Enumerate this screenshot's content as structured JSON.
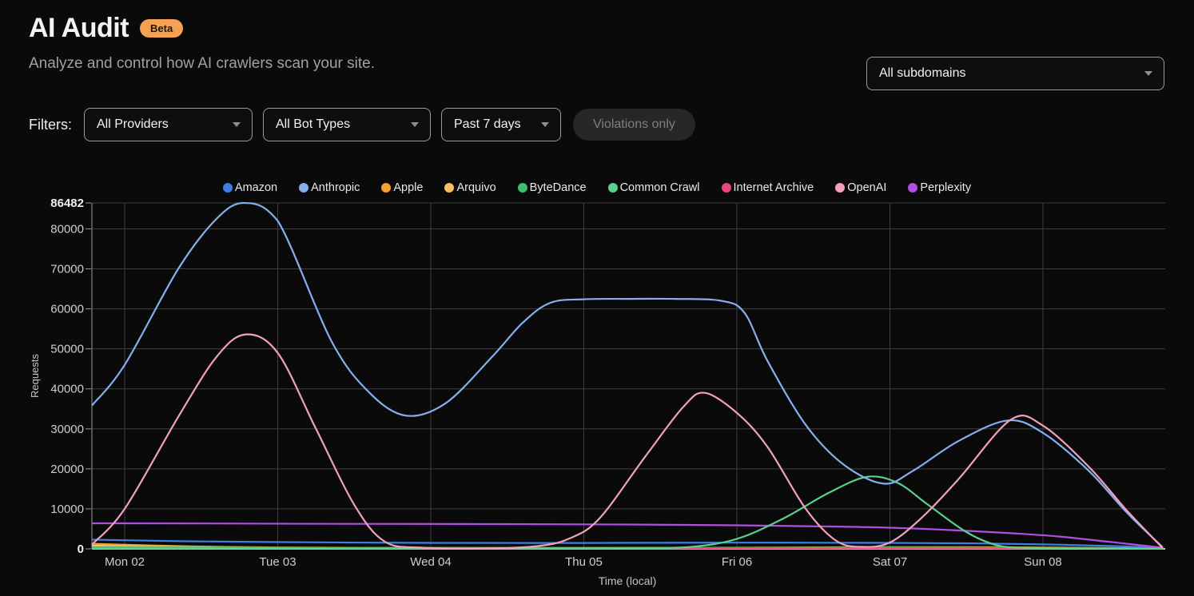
{
  "page": {
    "title": "AI Audit",
    "badge": "Beta",
    "subtitle": "Analyze and control how AI crawlers scan your site."
  },
  "subdomain_select": {
    "value": "All subdomains"
  },
  "filters": {
    "label": "Filters:",
    "provider": "All Providers",
    "bot_type": "All Bot Types",
    "time_range": "Past 7 days",
    "violations_button": "Violations only"
  },
  "chart_data": {
    "type": "line",
    "title": "",
    "xlabel": "Time (local)",
    "ylabel": "Requests",
    "x_ticks": [
      "Mon 02",
      "Tue 03",
      "Wed 04",
      "Thu 05",
      "Fri 06",
      "Sat 07",
      "Sun 08"
    ],
    "y_ticks": [
      0,
      10000,
      20000,
      30000,
      40000,
      50000,
      60000,
      70000,
      80000,
      86482
    ],
    "ylim": [
      0,
      86482
    ],
    "x_unit": "days (0 = Mon 02 tick, chart spans -0.21 to 6.78)",
    "grid": true,
    "legend_position": "top",
    "series": [
      {
        "name": "Amazon",
        "color": "#3e7fe1",
        "points": [
          [
            -0.21,
            2300
          ],
          [
            0.4,
            1900
          ],
          [
            1.2,
            1650
          ],
          [
            2,
            1500
          ],
          [
            3,
            1480
          ],
          [
            4,
            1550
          ],
          [
            5,
            1500
          ],
          [
            5.6,
            1350
          ],
          [
            6.1,
            1050
          ],
          [
            6.5,
            650
          ],
          [
            6.78,
            250
          ]
        ]
      },
      {
        "name": "Anthropic",
        "color": "#86aff0",
        "points": [
          [
            -0.21,
            36000
          ],
          [
            0,
            46000
          ],
          [
            0.35,
            70000
          ],
          [
            0.6,
            82500
          ],
          [
            0.78,
            86482
          ],
          [
            1,
            82000
          ],
          [
            1.35,
            52000
          ],
          [
            1.6,
            39000
          ],
          [
            1.84,
            33300
          ],
          [
            2.1,
            36500
          ],
          [
            2.4,
            48000
          ],
          [
            2.6,
            56500
          ],
          [
            2.78,
            61500
          ],
          [
            3,
            62400
          ],
          [
            3.3,
            62500
          ],
          [
            3.6,
            62500
          ],
          [
            3.9,
            62000
          ],
          [
            4.05,
            59000
          ],
          [
            4.2,
            47000
          ],
          [
            4.45,
            31000
          ],
          [
            4.7,
            21000
          ],
          [
            4.96,
            16300
          ],
          [
            5.15,
            19500
          ],
          [
            5.45,
            27000
          ],
          [
            5.77,
            32100
          ],
          [
            6,
            29000
          ],
          [
            6.3,
            19500
          ],
          [
            6.55,
            9000
          ],
          [
            6.78,
            500
          ]
        ]
      },
      {
        "name": "Apple",
        "color": "#f5a033",
        "points": [
          [
            -0.21,
            1250
          ],
          [
            0.4,
            650
          ],
          [
            1,
            350
          ],
          [
            2,
            230
          ],
          [
            3,
            230
          ],
          [
            4,
            300
          ],
          [
            4.8,
            420
          ],
          [
            5.5,
            430
          ],
          [
            6.1,
            320
          ],
          [
            6.78,
            120
          ]
        ]
      },
      {
        "name": "Arquivo",
        "color": "#f6bf60",
        "points": [
          [
            -0.21,
            820
          ],
          [
            0.4,
            430
          ],
          [
            1,
            260
          ],
          [
            2,
            170
          ],
          [
            3,
            150
          ],
          [
            4,
            170
          ],
          [
            5,
            210
          ],
          [
            6,
            170
          ],
          [
            6.78,
            80
          ]
        ]
      },
      {
        "name": "ByteDance",
        "color": "#3dbd6e",
        "points": [
          [
            -0.21,
            380
          ],
          [
            1,
            290
          ],
          [
            2,
            250
          ],
          [
            3,
            240
          ],
          [
            4,
            260
          ],
          [
            5,
            290
          ],
          [
            6,
            240
          ],
          [
            6.78,
            110
          ]
        ]
      },
      {
        "name": "Common Crawl",
        "color": "#5bd08c",
        "points": [
          [
            -0.21,
            120
          ],
          [
            0.5,
            110
          ],
          [
            1.5,
            100
          ],
          [
            2.5,
            120
          ],
          [
            3.3,
            200
          ],
          [
            3.7,
            500
          ],
          [
            4,
            2500
          ],
          [
            4.3,
            7500
          ],
          [
            4.6,
            14000
          ],
          [
            4.85,
            18000
          ],
          [
            5.05,
            16500
          ],
          [
            5.25,
            11000
          ],
          [
            5.5,
            4200
          ],
          [
            5.7,
            900
          ],
          [
            5.9,
            250
          ],
          [
            6.3,
            120
          ],
          [
            6.78,
            80
          ]
        ]
      },
      {
        "name": "Internet Archive",
        "color": "#e8467c",
        "points": [
          [
            -0.21,
            190
          ],
          [
            1,
            150
          ],
          [
            2,
            130
          ],
          [
            3,
            140
          ],
          [
            4,
            160
          ],
          [
            5,
            170
          ],
          [
            6,
            140
          ],
          [
            6.78,
            60
          ]
        ]
      },
      {
        "name": "OpenAI",
        "color": "#f2a0bd",
        "points": [
          [
            -0.21,
            1200
          ],
          [
            0,
            10000
          ],
          [
            0.35,
            33000
          ],
          [
            0.6,
            48000
          ],
          [
            0.79,
            53600
          ],
          [
            1,
            49000
          ],
          [
            1.25,
            30000
          ],
          [
            1.5,
            11000
          ],
          [
            1.7,
            1800
          ],
          [
            1.95,
            300
          ],
          [
            2.4,
            150
          ],
          [
            2.7,
            700
          ],
          [
            2.9,
            2500
          ],
          [
            3.1,
            7500
          ],
          [
            3.4,
            23000
          ],
          [
            3.65,
            35500
          ],
          [
            3.79,
            39000
          ],
          [
            4,
            34000
          ],
          [
            4.2,
            25500
          ],
          [
            4.45,
            10000
          ],
          [
            4.65,
            2000
          ],
          [
            4.82,
            500
          ],
          [
            5,
            1600
          ],
          [
            5.2,
            7500
          ],
          [
            5.45,
            17500
          ],
          [
            5.79,
            32300
          ],
          [
            6,
            30800
          ],
          [
            6.3,
            20500
          ],
          [
            6.55,
            9500
          ],
          [
            6.78,
            300
          ]
        ]
      },
      {
        "name": "Perplexity",
        "color": "#ae4fe0",
        "points": [
          [
            -0.21,
            6400
          ],
          [
            0.5,
            6350
          ],
          [
            1.5,
            6250
          ],
          [
            2.5,
            6200
          ],
          [
            3.3,
            6100
          ],
          [
            4,
            5900
          ],
          [
            4.6,
            5600
          ],
          [
            5,
            5300
          ],
          [
            5.4,
            4700
          ],
          [
            5.8,
            3900
          ],
          [
            6.1,
            3100
          ],
          [
            6.4,
            1900
          ],
          [
            6.78,
            300
          ]
        ]
      }
    ]
  }
}
